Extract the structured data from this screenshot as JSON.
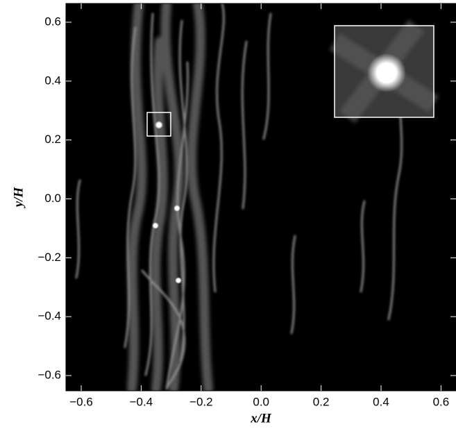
{
  "chart_data": {
    "type": "image",
    "x_label": "x/H",
    "y_label": "y/H",
    "xlim": [
      -0.65,
      0.65
    ],
    "ylim": [
      -0.65,
      0.65
    ],
    "xticks": [
      {
        "value": -0.6,
        "label": "−0.6"
      },
      {
        "value": -0.4,
        "label": "−0.4"
      },
      {
        "value": -0.2,
        "label": "−0.2"
      },
      {
        "value": 0,
        "label": "0.0"
      },
      0.2,
      0.4,
      0.6
    ],
    "yticks": [
      {
        "value": -0.6,
        "label": "−0.6"
      },
      {
        "value": -0.4,
        "label": "−0.4"
      },
      {
        "value": -0.2,
        "label": "−0.2"
      },
      {
        "value": 0,
        "label": "0.0"
      },
      0.2,
      0.4,
      0.6
    ]
  }
}
